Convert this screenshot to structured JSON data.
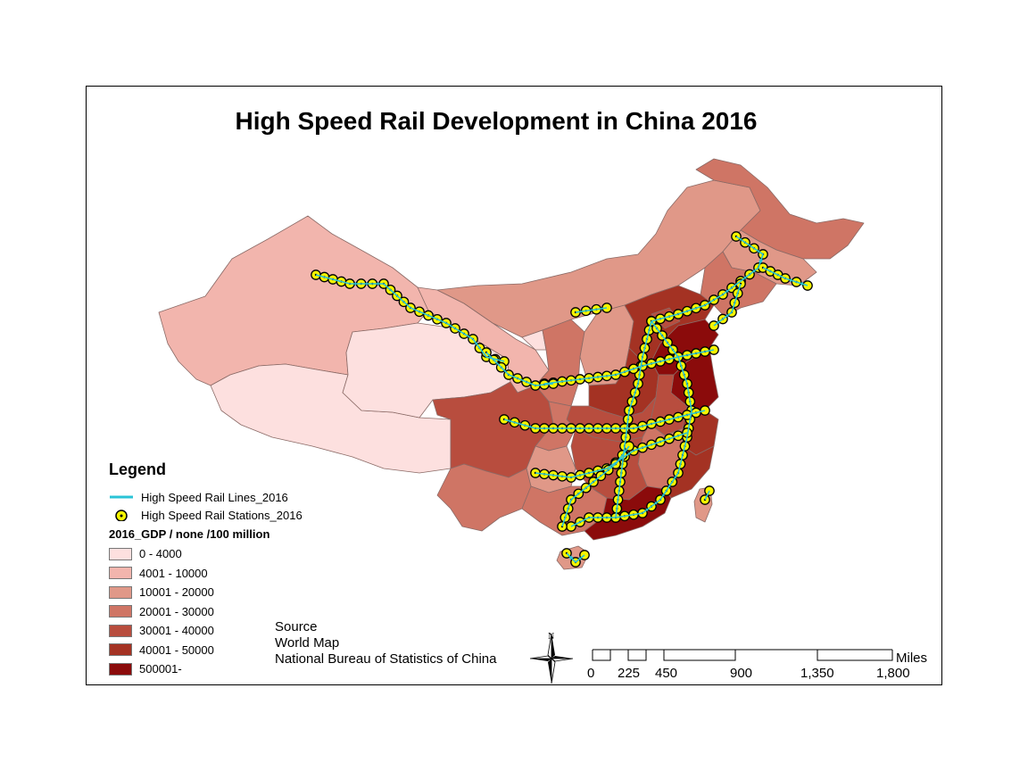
{
  "title": "High Speed Rail Development in China 2016",
  "legend": {
    "heading": "Legend",
    "lines_label": "High Speed Rail Lines_2016",
    "stations_label": "High Speed Rail Stations_2016",
    "gdp_heading": "2016_GDP / none /100 million",
    "classes": [
      {
        "label": "0 - 4000",
        "color": "#fde0df"
      },
      {
        "label": "4001 - 10000",
        "color": "#f2b5ad"
      },
      {
        "label": "10001 - 20000",
        "color": "#e09888"
      },
      {
        "label": "20001 - 30000",
        "color": "#cf7565"
      },
      {
        "label": "30001 - 40000",
        "color": "#b84d3e"
      },
      {
        "label": "40001 - 50000",
        "color": "#a43223"
      },
      {
        "label": "500001-",
        "color": "#8b0b0b"
      }
    ]
  },
  "source": {
    "heading": "Source",
    "line1": "World Map",
    "line2": "National Bureau of Statistics of China"
  },
  "north_arrow_label": "N",
  "scale_bar": {
    "unit": "Miles",
    "ticks": [
      "0",
      "225",
      "450",
      "900",
      "1,350",
      "1,800"
    ]
  },
  "colors": {
    "rail_line": "#29c3d6",
    "station_fill": "#f5f500",
    "station_dot": "#000000"
  }
}
